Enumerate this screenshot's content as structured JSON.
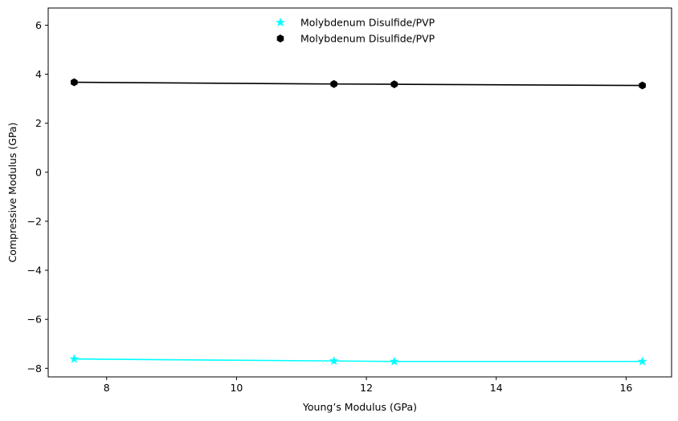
{
  "chart_data": {
    "type": "line",
    "xlabel": "Young’s Modulus (GPa)",
    "ylabel": "Compressive Modulus (GPa)",
    "xlim": [
      7.1,
      16.7
    ],
    "ylim": [
      -8.35,
      6.7
    ],
    "x_ticks": [
      8,
      10,
      12,
      14,
      16
    ],
    "y_ticks": [
      6,
      4,
      2,
      0,
      -2,
      -4,
      -6,
      -8
    ],
    "x_tick_labels": [
      "8",
      "10",
      "12",
      "14",
      "16"
    ],
    "y_tick_labels": [
      "6",
      "4",
      "2",
      "0",
      "−2",
      "−4",
      "−6",
      "−8"
    ],
    "grid": false,
    "legend_position": "upper center",
    "series": [
      {
        "name": "Molybdenum Disulfide/PVP",
        "color": "#00ffff",
        "marker": "star",
        "x": [
          7.5,
          11.5,
          12.43,
          16.25
        ],
        "y": [
          -7.62,
          -7.7,
          -7.72,
          -7.72
        ]
      },
      {
        "name": "Molybdenum Disulfide/PVP",
        "color": "#000000",
        "marker": "hexagon",
        "x": [
          7.5,
          11.5,
          12.43,
          16.25
        ],
        "y": [
          3.67,
          3.6,
          3.59,
          3.54
        ]
      }
    ]
  }
}
